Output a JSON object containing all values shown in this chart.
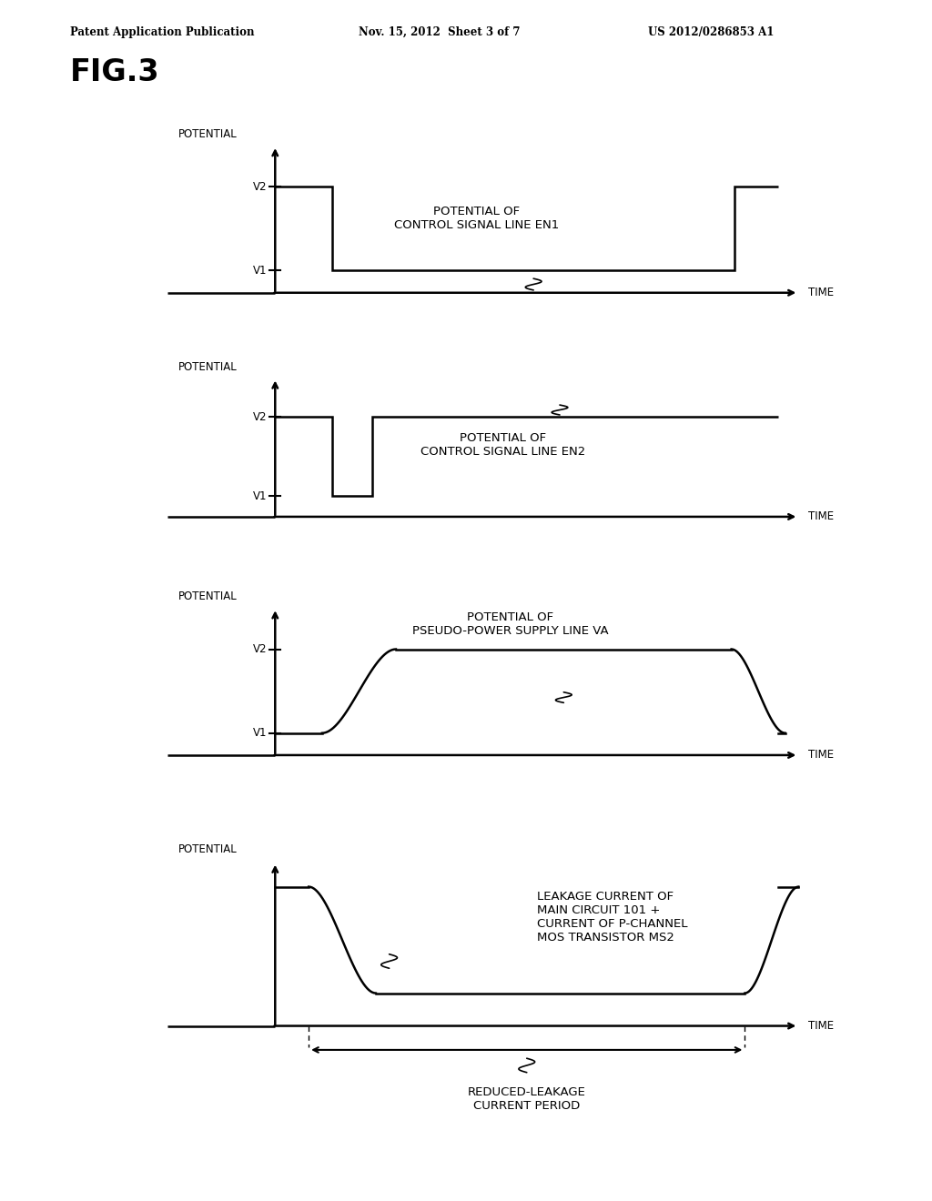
{
  "fig_label": "FIG.3",
  "header_left": "Patent Application Publication",
  "header_mid": "Nov. 15, 2012  Sheet 3 of 7",
  "header_right": "US 2012/0286853 A1",
  "background_color": "#ffffff",
  "panels": [
    {
      "ylabel": "POTENTIAL",
      "xlabel": "TIME",
      "label": "POTENTIAL OF\nCONTROL SIGNAL LINE EN1",
      "signal_type": "EN1"
    },
    {
      "ylabel": "POTENTIAL",
      "xlabel": "TIME",
      "label": "POTENTIAL OF\nCONTROL SIGNAL LINE EN2",
      "signal_type": "EN2"
    },
    {
      "ylabel": "POTENTIAL",
      "xlabel": "TIME",
      "label": "POTENTIAL OF\nPSEUDO-POWER SUPPLY LINE VA",
      "signal_type": "VA"
    },
    {
      "ylabel": "POTENTIAL",
      "xlabel": "TIME",
      "label": "LEAKAGE CURRENT OF\nMAIN CIRCUIT 101 +\nCURRENT OF P-CHANNEL\nMOS TRANSISTOR MS2",
      "signal_type": "leakage",
      "bottom_label": "REDUCED-LEAKAGE\nCURRENT PERIOD"
    }
  ]
}
